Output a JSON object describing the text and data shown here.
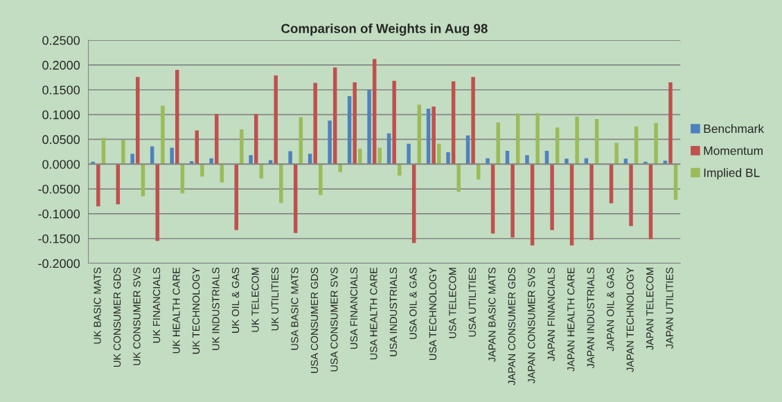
{
  "chart_data": {
    "type": "bar",
    "title": "Comparison of Weights in Aug 98",
    "categories": [
      "UK BASIC MATS",
      "UK CONSUMER GDS",
      "UK CONSUMER SVS",
      "UK FINANCIALS",
      "UK HEALTH CARE",
      "UK TECHNOLOGY",
      "UK INDUSTRIALS",
      "UK OIL & GAS",
      "UK TELECOM",
      "UK UTILITIES",
      "USA BASIC MATS",
      "USA CONSUMER GDS",
      "USA CONSUMER SVS",
      "USA FINANCIALS",
      "USA HEALTH CARE",
      "USA INDUSTRIALS",
      "USA OIL & GAS",
      "USA TECHNOLOGY",
      "USA TELECOM",
      "USA UTILITIES",
      "JAPAN BASIC MATS",
      "JAPAN CONSUMER GDS",
      "JAPAN CONSUMER SVS",
      "JAPAN FINANCIALS",
      "JAPAN HEALTH CARE",
      "JAPAN INDUSTRIALS",
      "JAPAN OIL & GAS",
      "JAPAN TECHNOLOGY",
      "JAPAN TELECOM",
      "JAPAN UTILITIES"
    ],
    "series": [
      {
        "name": "Benchmark",
        "color": "#4f81bd",
        "values": [
          0.005,
          null,
          0.021,
          0.036,
          0.033,
          0.006,
          0.012,
          null,
          0.018,
          0.008,
          0.026,
          0.021,
          0.088,
          0.137,
          0.15,
          0.062,
          0.041,
          0.112,
          0.024,
          0.058,
          0.012,
          0.027,
          0.018,
          0.027,
          0.011,
          0.012,
          null,
          0.011,
          0.005,
          0.007
        ]
      },
      {
        "name": "Momentum",
        "color": "#c0504d",
        "values": [
          -0.085,
          -0.081,
          0.176,
          -0.155,
          0.19,
          0.068,
          0.101,
          -0.133,
          0.101,
          0.179,
          -0.139,
          0.164,
          0.195,
          0.165,
          0.212,
          0.168,
          -0.159,
          0.116,
          0.167,
          0.176,
          -0.14,
          -0.148,
          -0.164,
          -0.133,
          -0.164,
          -0.153,
          -0.079,
          -0.125,
          -0.151,
          0.165
        ]
      },
      {
        "name": "Implied BL",
        "color": "#9bbb59",
        "values": [
          0.053,
          0.049,
          -0.065,
          0.118,
          -0.059,
          -0.025,
          -0.037,
          0.07,
          -0.029,
          -0.078,
          0.095,
          -0.062,
          -0.016,
          0.031,
          0.033,
          -0.023,
          0.12,
          0.041,
          -0.056,
          -0.031,
          0.084,
          0.102,
          0.103,
          0.074,
          0.096,
          0.091,
          0.043,
          0.076,
          0.083,
          -0.072
        ]
      }
    ],
    "ylim": [
      -0.2,
      0.25
    ],
    "yticks": [
      {
        "value": -0.2,
        "label": "-0.2000"
      },
      {
        "value": -0.15,
        "label": "-0.1500"
      },
      {
        "value": -0.1,
        "label": "-0.1000"
      },
      {
        "value": -0.05,
        "label": "-0.0500"
      },
      {
        "value": 0,
        "label": "0.0000"
      },
      {
        "value": 0.05,
        "label": "0.0500"
      },
      {
        "value": 0.1,
        "label": "0.1000"
      },
      {
        "value": 0.15,
        "label": "0.1500"
      },
      {
        "value": 0.2,
        "label": "0.2000"
      },
      {
        "value": 0.25,
        "label": "0.2500"
      }
    ],
    "grid": "y",
    "legend": "right"
  }
}
